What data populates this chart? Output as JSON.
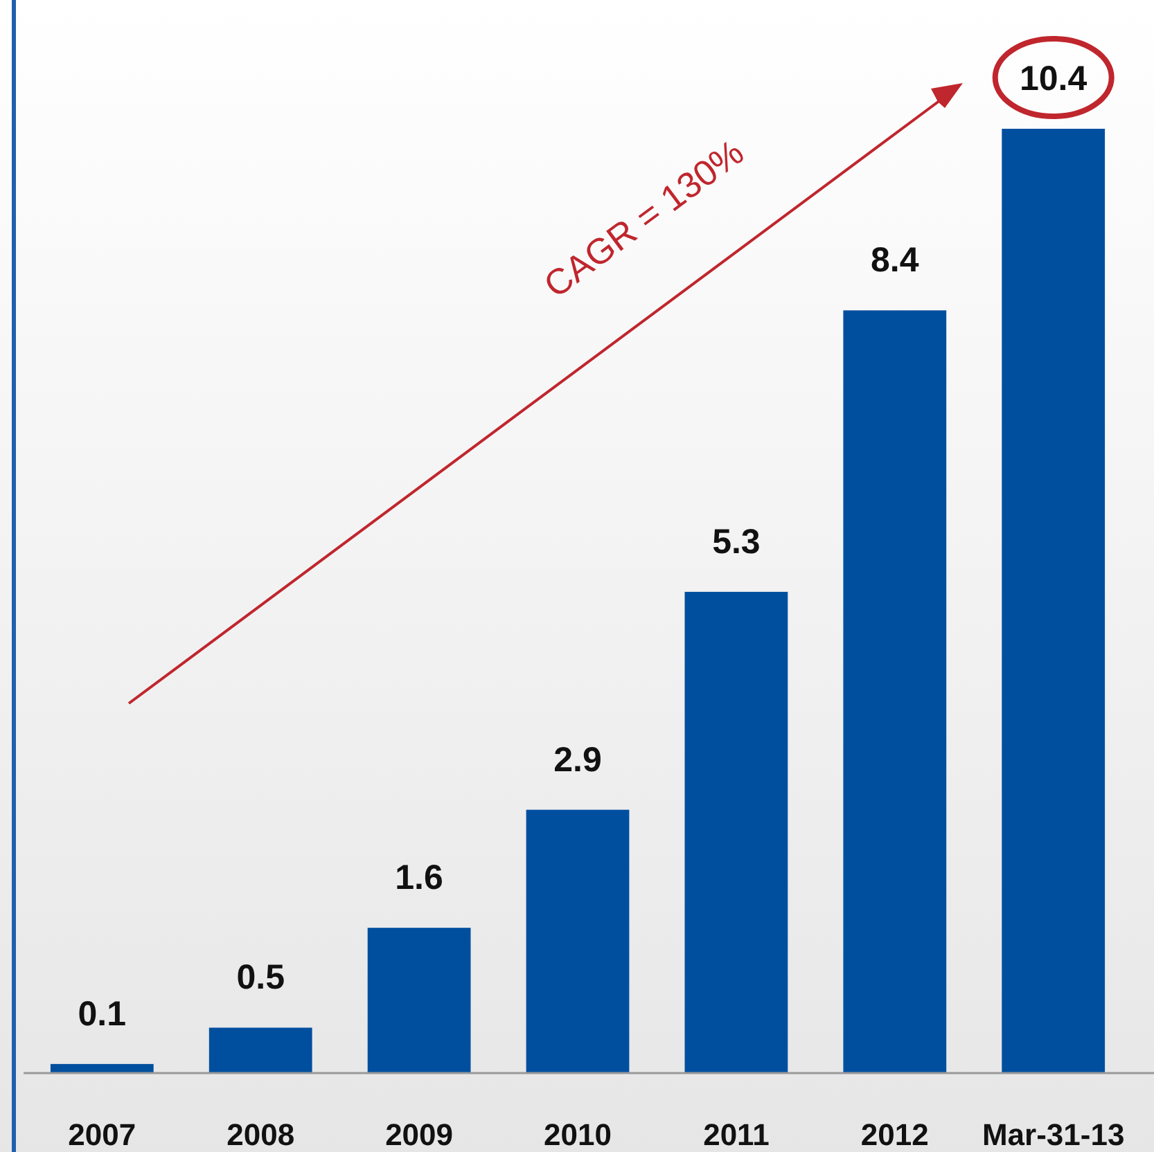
{
  "chart_data": {
    "type": "bar",
    "categories": [
      "2007",
      "2008",
      "2009",
      "2010",
      "2011",
      "2012",
      "Mar-31-13"
    ],
    "values": [
      0.1,
      0.5,
      1.6,
      2.9,
      5.3,
      8.4,
      10.4
    ],
    "color": "#004f9f",
    "data_labels": true,
    "annotations": [
      "CAGR = 130%"
    ]
  }
}
